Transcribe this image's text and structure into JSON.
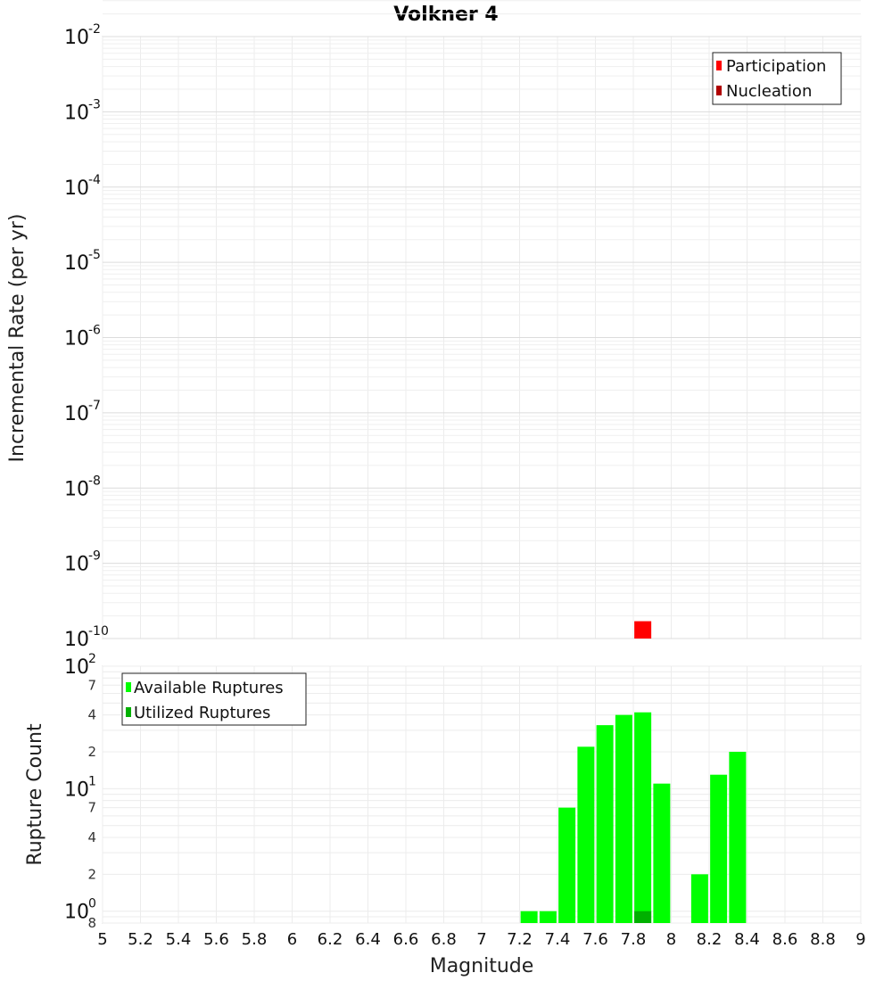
{
  "title": "Volkner 4",
  "chart_data": [
    {
      "type": "bar",
      "name": "rate-panel",
      "ylabel": "Incremental Rate (per yr)",
      "yscale": "log",
      "ylim": [
        1e-10,
        0.01
      ],
      "xlim": [
        5,
        9
      ],
      "y_ticks": [
        {
          "base": "10",
          "exp": "-2"
        },
        {
          "base": "10",
          "exp": "-3"
        },
        {
          "base": "10",
          "exp": "-4"
        },
        {
          "base": "10",
          "exp": "-5"
        },
        {
          "base": "10",
          "exp": "-6"
        },
        {
          "base": "10",
          "exp": "-7"
        },
        {
          "base": "10",
          "exp": "-8"
        },
        {
          "base": "10",
          "exp": "-9"
        },
        {
          "base": "10",
          "exp": "-10"
        }
      ],
      "grid": true,
      "legend": {
        "placement": "top-right",
        "items": [
          {
            "label": "Participation",
            "color": "#ff0000"
          },
          {
            "label": "Nucleation",
            "color": "#b00000"
          }
        ]
      },
      "series": [
        {
          "name": "Participation",
          "color": "#ff0000",
          "points": [
            {
              "x": 7.85,
              "y": 1.7e-10
            }
          ]
        },
        {
          "name": "Nucleation",
          "color": "#b00000",
          "points": []
        }
      ]
    },
    {
      "type": "bar",
      "name": "count-panel",
      "ylabel": "Rupture Count",
      "xlabel": "Magnitude",
      "yscale": "log",
      "ylim": [
        0.8,
        100
      ],
      "xlim": [
        5,
        9
      ],
      "x_ticks": [
        "5",
        "5.2",
        "5.4",
        "5.6",
        "5.8",
        "6",
        "6.2",
        "6.4",
        "6.6",
        "6.8",
        "7",
        "7.2",
        "7.4",
        "7.6",
        "7.8",
        "8",
        "8.2",
        "8.4",
        "8.6",
        "8.8",
        "9"
      ],
      "y_major_ticks": [
        {
          "base": "10",
          "exp": "2",
          "value": 100
        },
        {
          "base": "10",
          "exp": "1",
          "value": 10
        },
        {
          "base": "10",
          "exp": "0",
          "value": 1
        }
      ],
      "y_minor_ticks": [
        {
          "label": "7",
          "value": 70
        },
        {
          "label": "4",
          "value": 40
        },
        {
          "label": "2",
          "value": 20
        },
        {
          "label": "7",
          "value": 7
        },
        {
          "label": "4",
          "value": 4
        },
        {
          "label": "2",
          "value": 2
        },
        {
          "label": "8",
          "value": 0.8
        }
      ],
      "grid": true,
      "legend": {
        "placement": "top-left",
        "items": [
          {
            "label": "Available Ruptures",
            "color": "#00ff00"
          },
          {
            "label": "Utilized Ruptures",
            "color": "#00b000"
          }
        ]
      },
      "series": [
        {
          "name": "Available Ruptures",
          "color": "#00ff00",
          "points": [
            {
              "x": 7.25,
              "y": 1
            },
            {
              "x": 7.35,
              "y": 1
            },
            {
              "x": 7.45,
              "y": 7
            },
            {
              "x": 7.55,
              "y": 22
            },
            {
              "x": 7.65,
              "y": 33
            },
            {
              "x": 7.75,
              "y": 40
            },
            {
              "x": 7.85,
              "y": 42
            },
            {
              "x": 7.95,
              "y": 11
            },
            {
              "x": 8.15,
              "y": 2
            },
            {
              "x": 8.25,
              "y": 13
            },
            {
              "x": 8.35,
              "y": 20
            }
          ]
        },
        {
          "name": "Utilized Ruptures",
          "color": "#00b000",
          "points": [
            {
              "x": 7.85,
              "y": 1
            }
          ]
        }
      ]
    }
  ]
}
